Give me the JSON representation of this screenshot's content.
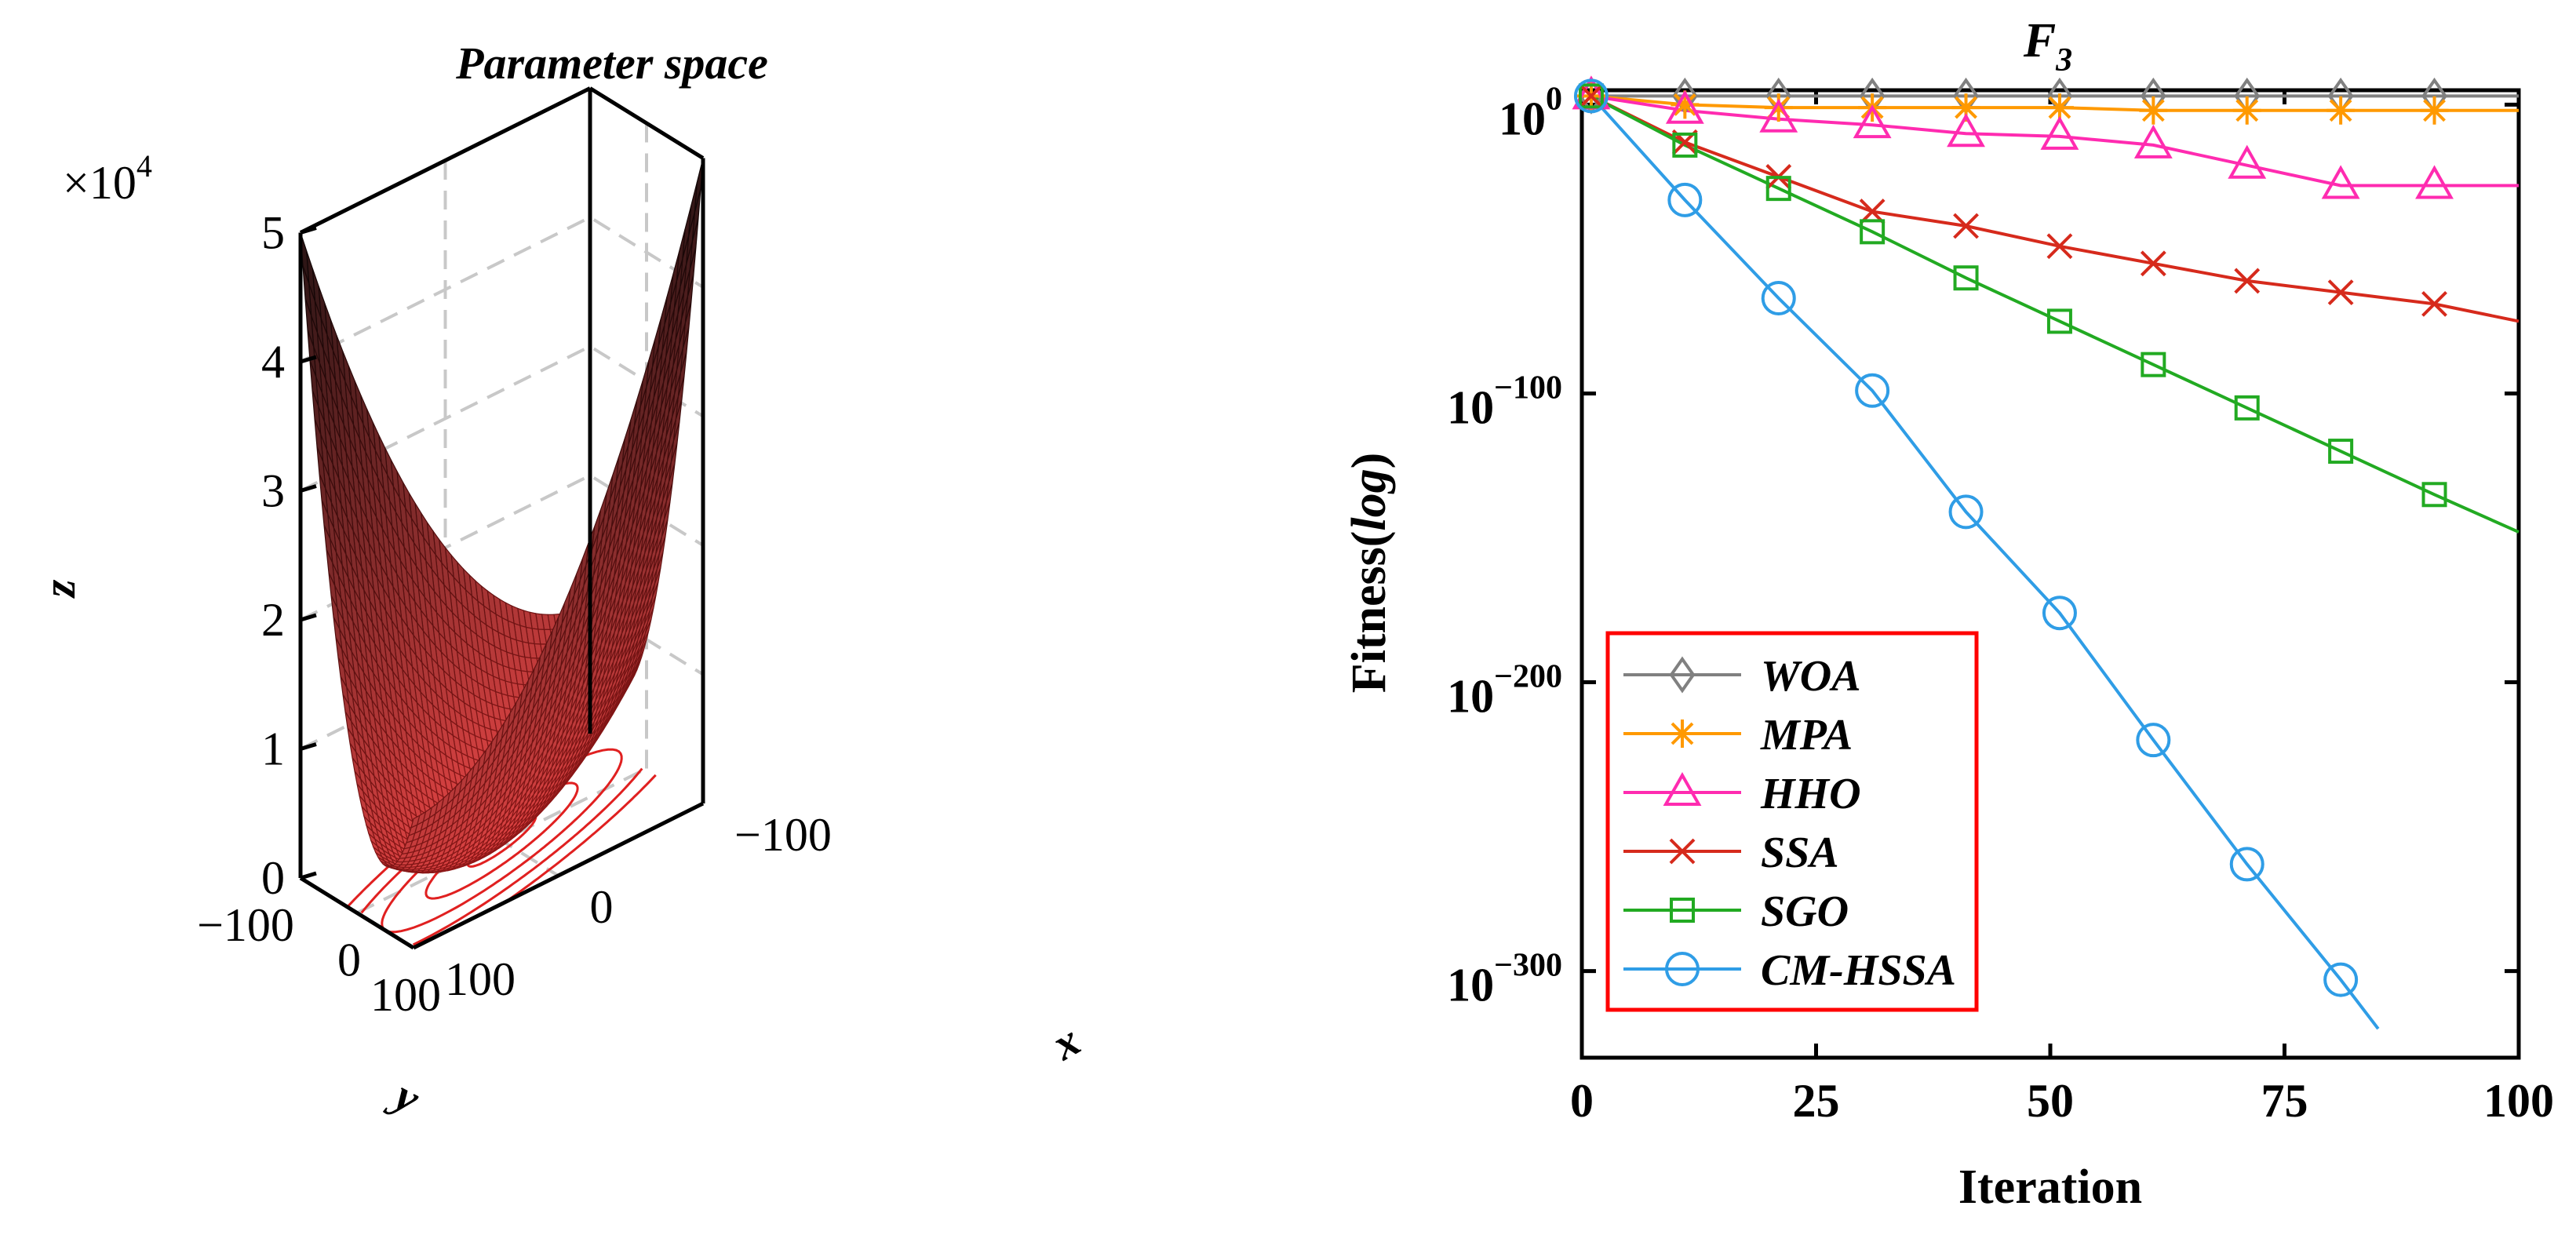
{
  "chart_data": [
    {
      "type": "surface3d",
      "title": "Parameter space",
      "xlabel": "x",
      "ylabel": "y",
      "zlabel": "z",
      "z_multiplier": "×10",
      "z_exponent": "4",
      "x_ticks": [
        "−100",
        "0",
        "100"
      ],
      "y_ticks": [
        "−100",
        "0",
        "100"
      ],
      "z_ticks": [
        "0",
        "1",
        "2",
        "3",
        "4",
        "5"
      ],
      "xlim": [
        -100,
        100
      ],
      "ylim": [
        -100,
        100
      ],
      "zlim": [
        0,
        50000
      ],
      "colors": {
        "surface": "#e23a3a",
        "surface_light": "#f06060",
        "surface_dark": "#1a0f0f",
        "contour": "#e02020",
        "grid": "#c8c8c8",
        "axis": "#000000"
      }
    },
    {
      "type": "line",
      "yscale": "log",
      "title_main": "F",
      "title_sub": "3",
      "xlabel": "Iteration",
      "ylabel": "Fitness(log)",
      "ylabel_main": "Fitness(",
      "ylabel_italic": "log",
      "ylabel_close": ")",
      "xlim": [
        0,
        100
      ],
      "ylog_exponent_lim": [
        -330,
        5
      ],
      "x_ticks": [
        "0",
        "25",
        "50",
        "75",
        "100"
      ],
      "y_tick_base": "10",
      "y_tick_exponents": [
        "0",
        "−100",
        "−200",
        "−300"
      ],
      "series": [
        {
          "name": "WOA",
          "color": "#808080",
          "marker": "diamond",
          "x": [
            1,
            11,
            21,
            31,
            41,
            51,
            61,
            71,
            81,
            91,
            100
          ],
          "log10": [
            3,
            3,
            3,
            3,
            3,
            3,
            3,
            3,
            3,
            3,
            3
          ]
        },
        {
          "name": "MPA",
          "color": "#ff9900",
          "marker": "asterisk",
          "x": [
            1,
            11,
            21,
            31,
            41,
            51,
            61,
            71,
            81,
            91,
            100
          ],
          "log10": [
            3,
            0,
            -1,
            -1,
            -1,
            -1,
            -2,
            -2,
            -2,
            -2,
            -2
          ]
        },
        {
          "name": "HHO",
          "color": "#ff2bb0",
          "marker": "triangle",
          "x": [
            1,
            11,
            21,
            31,
            41,
            51,
            61,
            71,
            81,
            91,
            100
          ],
          "log10": [
            3,
            -2,
            -5,
            -7,
            -10,
            -11,
            -14,
            -21,
            -28,
            -28,
            -28
          ]
        },
        {
          "name": "SSA",
          "color": "#d62a1c",
          "marker": "x",
          "x": [
            1,
            11,
            21,
            31,
            41,
            51,
            61,
            71,
            81,
            91,
            100
          ],
          "log10": [
            3,
            -13,
            -25,
            -37,
            -42,
            -49,
            -55,
            -61,
            -65,
            -69,
            -75
          ]
        },
        {
          "name": "SGO",
          "color": "#22aa22",
          "marker": "square",
          "x": [
            1,
            11,
            21,
            31,
            41,
            51,
            61,
            71,
            81,
            91,
            100
          ],
          "log10": [
            3,
            -14,
            -29,
            -44,
            -60,
            -75,
            -90,
            -105,
            -120,
            -135,
            -148
          ]
        },
        {
          "name": "CM-HSSA",
          "color": "#2f9de6",
          "marker": "circle",
          "x": [
            1,
            11,
            21,
            31,
            41,
            51,
            61,
            71,
            81,
            85
          ],
          "log10": [
            3,
            -33,
            -67,
            -99,
            -141,
            -176,
            -220,
            -263,
            -303,
            -320
          ]
        }
      ],
      "legend_position": "bottom-left",
      "colors": {
        "legend_border": "#ff0000",
        "axis": "#000000"
      }
    }
  ]
}
